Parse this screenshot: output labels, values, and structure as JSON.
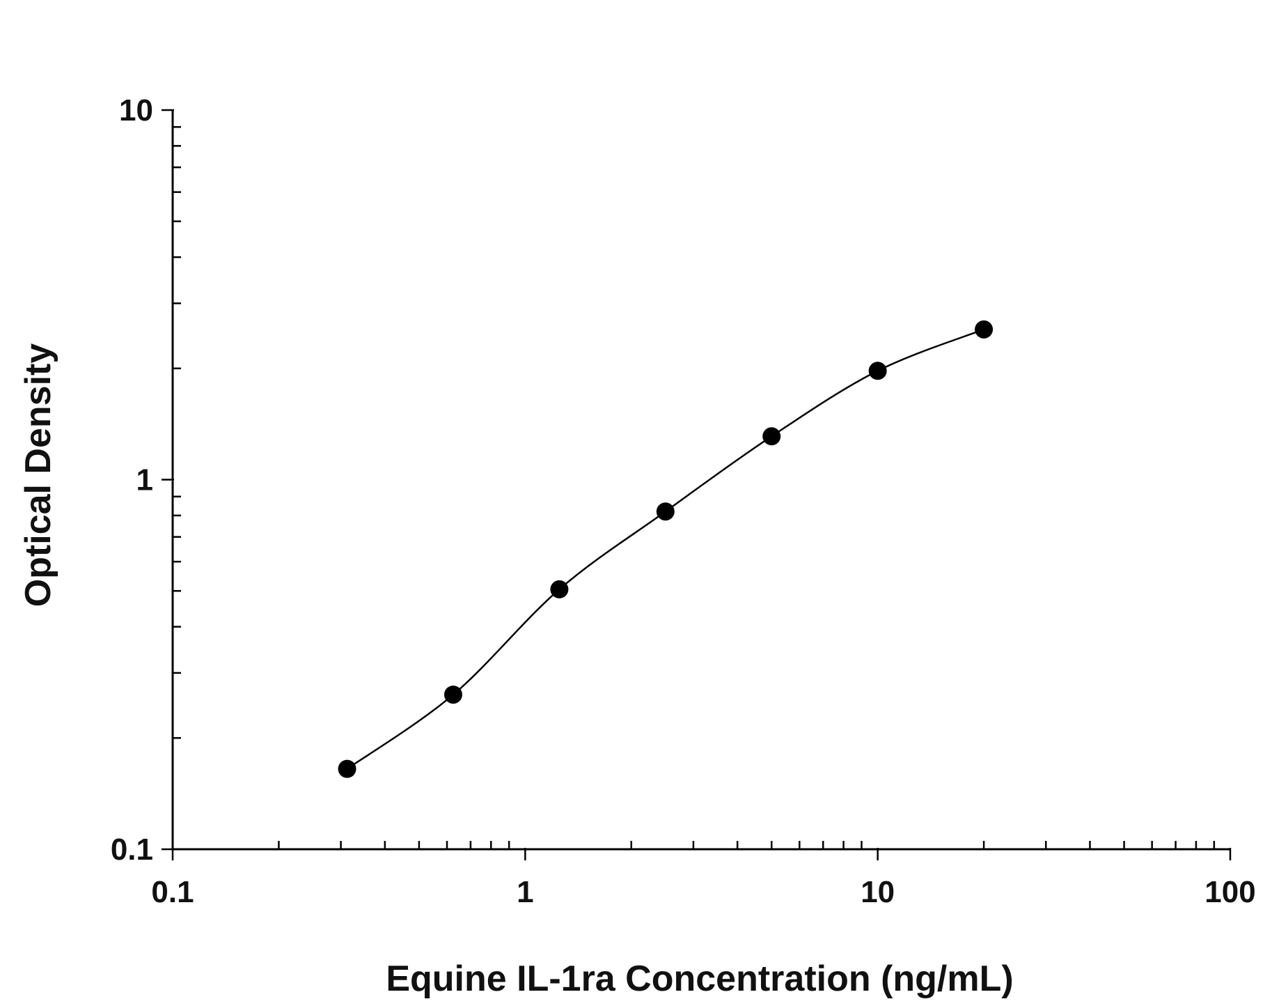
{
  "chart_data": {
    "type": "scatter",
    "xlabel": "Equine IL-1ra Concentration (ng/mL)",
    "ylabel": "Optical Density",
    "x_scale": "log",
    "y_scale": "log",
    "xlim": [
      0.1,
      100
    ],
    "ylim": [
      0.1,
      10
    ],
    "x_ticks": [
      0.1,
      1,
      10,
      100
    ],
    "x_tick_labels": [
      "0.1",
      "1",
      "10",
      "100"
    ],
    "y_ticks": [
      0.1,
      1,
      10
    ],
    "y_tick_labels": [
      "0.1",
      "1",
      "10"
    ],
    "grid": false,
    "legend": "none",
    "series": [
      {
        "marker": "filled-circle",
        "fit": "smooth-curve",
        "color": "#000000",
        "x": [
          0.3125,
          0.625,
          1.25,
          2.5,
          5,
          10,
          20
        ],
        "y": [
          0.165,
          0.262,
          0.505,
          0.82,
          1.31,
          1.97,
          2.55
        ]
      }
    ]
  }
}
